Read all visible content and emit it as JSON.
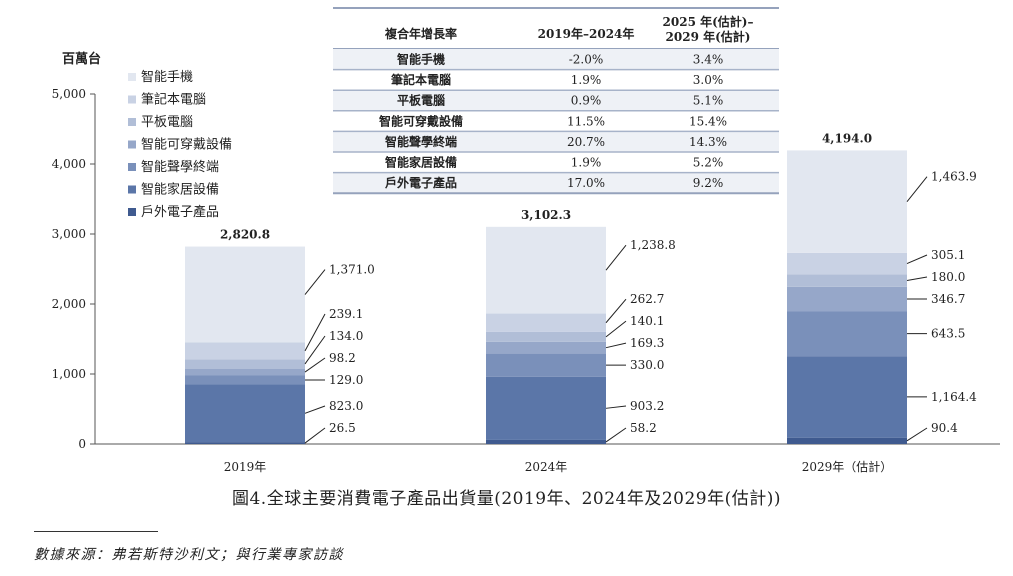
{
  "chart_data": {
    "type": "bar",
    "stacked": true,
    "ylabel": "百萬台",
    "ylim": [
      0,
      5000
    ],
    "yticks": [
      "0",
      "1,000",
      "2,000",
      "3,000",
      "4,000",
      "5,000"
    ],
    "ytick_values": [
      0,
      1000,
      2000,
      3000,
      4000,
      5000
    ],
    "grid": false,
    "legend_position": "top-left",
    "categories": [
      "2019年",
      "2024年",
      "2029年（估計）"
    ],
    "totals": [
      2820.8,
      3102.3,
      4194.0
    ],
    "total_labels": [
      "2,820.8",
      "3,102.3",
      "4,194.0"
    ],
    "series": [
      {
        "name": "戶外電子產品",
        "color": "#3f5a8f",
        "values": [
          26.5,
          58.2,
          90.4
        ],
        "labels": [
          "26.5",
          "58.2",
          "90.4"
        ]
      },
      {
        "name": "智能家居設備",
        "color": "#5b76a8",
        "values": [
          823.0,
          903.2,
          1164.4
        ],
        "labels": [
          "823.0",
          "903.2",
          "1,164.4"
        ]
      },
      {
        "name": "智能聲學終端",
        "color": "#7a90ba",
        "values": [
          129.0,
          330.0,
          643.5
        ],
        "labels": [
          "129.0",
          "330.0",
          "643.5"
        ]
      },
      {
        "name": "智能可穿戴設備",
        "color": "#96a7c9",
        "values": [
          98.2,
          169.3,
          346.7
        ],
        "labels": [
          "98.2",
          "169.3",
          "346.7"
        ]
      },
      {
        "name": "平板電腦",
        "color": "#b1bed7",
        "values": [
          134.0,
          140.1,
          180.0
        ],
        "labels": [
          "134.0",
          "140.1",
          "180.0"
        ]
      },
      {
        "name": "筆記本電腦",
        "color": "#c9d2e4",
        "values": [
          239.1,
          262.7,
          305.1
        ],
        "labels": [
          "239.1",
          "262.7",
          "305.1"
        ]
      },
      {
        "name": "智能手機",
        "color": "#e2e7f0",
        "values": [
          1371.0,
          1238.8,
          1463.9
        ],
        "labels": [
          "1,371.0",
          "1,238.8",
          "1,463.9"
        ]
      }
    ],
    "cagr_table": {
      "headers": [
        "複合年增長率",
        "2019年–2024年",
        "2025 年(估計)–\n2029 年(估計)"
      ],
      "rows": [
        [
          "智能手機",
          "-2.0%",
          "3.4%"
        ],
        [
          "筆記本電腦",
          "1.9%",
          "3.0%"
        ],
        [
          "平板電腦",
          "0.9%",
          "5.1%"
        ],
        [
          "智能可穿戴設備",
          "11.5%",
          "15.4%"
        ],
        [
          "智能聲學終端",
          "20.7%",
          "14.3%"
        ],
        [
          "智能家居設備",
          "1.9%",
          "5.2%"
        ],
        [
          "戶外電子產品",
          "17.0%",
          "9.2%"
        ]
      ]
    }
  },
  "caption": "圖4.全球主要消費電子產品出貨量(2019年、2024年及2029年(估計))",
  "source": "數據來源：弗若斯特沙利文；與行業專家訪談"
}
